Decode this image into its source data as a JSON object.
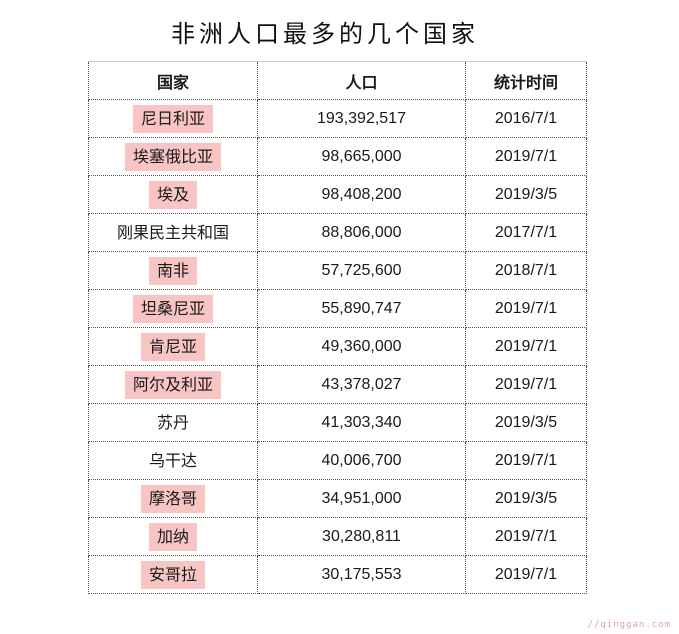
{
  "title": "非洲人口最多的几个国家",
  "headers": {
    "country": "国家",
    "population": "人口",
    "date": "统计时间"
  },
  "highlight_color": "#f8c4c4",
  "rows": [
    {
      "country": "尼日利亚",
      "population": "193,392,517",
      "date": "2016/7/1",
      "highlighted": true
    },
    {
      "country": "埃塞俄比亚",
      "population": "98,665,000",
      "date": "2019/7/1",
      "highlighted": true
    },
    {
      "country": "埃及",
      "population": "98,408,200",
      "date": "2019/3/5",
      "highlighted": true
    },
    {
      "country": "刚果民主共和国",
      "population": "88,806,000",
      "date": "2017/7/1",
      "highlighted": false
    },
    {
      "country": "南非",
      "population": "57,725,600",
      "date": "2018/7/1",
      "highlighted": true
    },
    {
      "country": "坦桑尼亚",
      "population": "55,890,747",
      "date": "2019/7/1",
      "highlighted": true
    },
    {
      "country": "肯尼亚",
      "population": "49,360,000",
      "date": "2019/7/1",
      "highlighted": true
    },
    {
      "country": "阿尔及利亚",
      "population": "43,378,027",
      "date": "2019/7/1",
      "highlighted": true
    },
    {
      "country": "苏丹",
      "population": "41,303,340",
      "date": "2019/3/5",
      "highlighted": false
    },
    {
      "country": "乌干达",
      "population": "40,006,700",
      "date": "2019/7/1",
      "highlighted": false
    },
    {
      "country": "摩洛哥",
      "population": "34,951,000",
      "date": "2019/3/5",
      "highlighted": true
    },
    {
      "country": "加纳",
      "population": "30,280,811",
      "date": "2019/7/1",
      "highlighted": true
    },
    {
      "country": "安哥拉",
      "population": "30,175,553",
      "date": "2019/7/1",
      "highlighted": true
    }
  ],
  "watermark": "//qinggan.com"
}
